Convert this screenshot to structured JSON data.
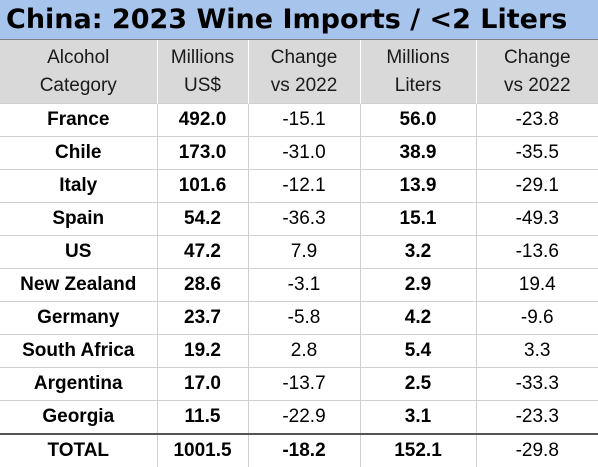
{
  "title": "China: 2023 Wine Imports / <2 Liters",
  "headers": [
    [
      "Alcohol",
      "Category"
    ],
    [
      "Millions",
      "US$"
    ],
    [
      "Change",
      "vs 2022"
    ],
    [
      "Millions",
      "Liters"
    ],
    [
      "Change",
      "vs 2022"
    ]
  ],
  "rows": [
    [
      "France",
      "492.0",
      "-15.1",
      "56.0",
      "-23.8"
    ],
    [
      "Chile",
      "173.0",
      "-31.0",
      "38.9",
      "-35.5"
    ],
    [
      "Italy",
      "101.6",
      "-12.1",
      "13.9",
      "-29.1"
    ],
    [
      "Spain",
      "54.2",
      "-36.3",
      "15.1",
      "-49.3"
    ],
    [
      "US",
      "47.2",
      "7.9",
      "3.2",
      "-13.6"
    ],
    [
      "New Zealand",
      "28.6",
      "-3.1",
      "2.9",
      "19.4"
    ],
    [
      "Germany",
      "23.7",
      "-5.8",
      "4.2",
      "-9.6"
    ],
    [
      "South Africa",
      "19.2",
      "2.8",
      "5.4",
      "3.3"
    ],
    [
      "Argentina",
      "17.0",
      "-13.7",
      "2.5",
      "-33.3"
    ],
    [
      "Georgia",
      "11.5",
      "-22.9",
      "3.1",
      "-23.3"
    ]
  ],
  "total": [
    "TOTAL",
    "1001.5",
    "-18.2",
    "152.1",
    "-29.8"
  ],
  "colors": {
    "title_bg": "#a7c4ec",
    "header_bg": "#d9d9d9"
  }
}
